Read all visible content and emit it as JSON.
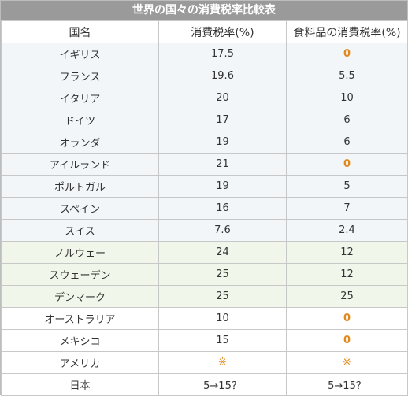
{
  "title": "世界の国々の消費税率比較表",
  "columns": [
    "国名",
    "消費税率(%)",
    "食料品の消費税率(%)"
  ],
  "highlight_color": "#e08a1e",
  "rows": [
    {
      "country": "イギリス",
      "rate": "17.5",
      "food_rate": "0",
      "group": "eu"
    },
    {
      "country": "フランス",
      "rate": "19.6",
      "food_rate": "5.5",
      "group": "eu"
    },
    {
      "country": "イタリア",
      "rate": "20",
      "food_rate": "10",
      "group": "eu"
    },
    {
      "country": "ドイツ",
      "rate": "17",
      "food_rate": "6",
      "group": "eu"
    },
    {
      "country": "オランダ",
      "rate": "19",
      "food_rate": "6",
      "group": "eu"
    },
    {
      "country": "アイルランド",
      "rate": "21",
      "food_rate": "0",
      "group": "eu"
    },
    {
      "country": "ポルトガル",
      "rate": "19",
      "food_rate": "5",
      "group": "eu"
    },
    {
      "country": "スペイン",
      "rate": "16",
      "food_rate": "7",
      "group": "eu"
    },
    {
      "country": "スイス",
      "rate": "7.6",
      "food_rate": "2.4",
      "group": "eu"
    },
    {
      "country": "ノルウェー",
      "rate": "24",
      "food_rate": "12",
      "group": "north"
    },
    {
      "country": "スウェーデン",
      "rate": "25",
      "food_rate": "12",
      "group": "north"
    },
    {
      "country": "デンマーク",
      "rate": "25",
      "food_rate": "25",
      "group": "north"
    },
    {
      "country": "オーストラリア",
      "rate": "10",
      "food_rate": "0",
      "group": "other"
    },
    {
      "country": "メキシコ",
      "rate": "15",
      "food_rate": "0",
      "group": "other"
    },
    {
      "country": "アメリカ",
      "rate": "※",
      "food_rate": "※",
      "group": "other"
    },
    {
      "country": "日本",
      "rate": "5→15？",
      "food_rate": "5→15？",
      "group": "other"
    }
  ]
}
